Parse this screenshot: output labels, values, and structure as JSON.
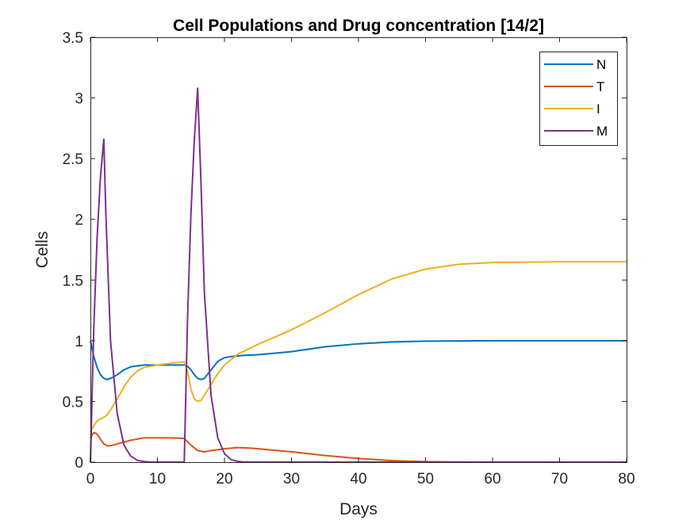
{
  "chart_data": {
    "type": "line",
    "title": "Cell Populations and Drug concentration [14/2]",
    "xlabel": "Days",
    "ylabel": "Cells",
    "xlim": [
      0,
      80
    ],
    "ylim": [
      0,
      3.5
    ],
    "xticks": [
      0,
      10,
      20,
      30,
      40,
      50,
      60,
      70,
      80
    ],
    "xtick_labels": [
      "0",
      "10",
      "20",
      "30",
      "40",
      "50",
      "60",
      "70",
      "80"
    ],
    "yticks": [
      0,
      0.5,
      1,
      1.5,
      2,
      2.5,
      3,
      3.5
    ],
    "ytick_labels": [
      "0",
      "0.5",
      "1",
      "1.5",
      "2",
      "2.5",
      "3",
      "3.5"
    ],
    "grid": false,
    "legend_position": "top-right",
    "series": [
      {
        "name": "N",
        "color": "#0072bd",
        "points": [
          [
            0,
            1
          ],
          [
            0.5,
            0.87
          ],
          [
            1,
            0.78
          ],
          [
            1.5,
            0.72
          ],
          [
            2,
            0.69
          ],
          [
            2.5,
            0.68
          ],
          [
            3,
            0.69
          ],
          [
            4,
            0.72
          ],
          [
            5,
            0.76
          ],
          [
            6,
            0.785
          ],
          [
            8,
            0.8
          ],
          [
            10,
            0.8
          ],
          [
            12,
            0.8
          ],
          [
            14,
            0.8
          ],
          [
            14.5,
            0.79
          ],
          [
            15,
            0.76
          ],
          [
            15.5,
            0.72
          ],
          [
            16,
            0.69
          ],
          [
            16.5,
            0.68
          ],
          [
            17,
            0.69
          ],
          [
            18,
            0.76
          ],
          [
            19,
            0.83
          ],
          [
            20,
            0.86
          ],
          [
            21,
            0.87
          ],
          [
            23,
            0.88
          ],
          [
            25,
            0.885
          ],
          [
            30,
            0.91
          ],
          [
            35,
            0.95
          ],
          [
            40,
            0.975
          ],
          [
            45,
            0.99
          ],
          [
            50,
            0.997
          ],
          [
            60,
            1
          ],
          [
            80,
            1
          ]
        ]
      },
      {
        "name": "T",
        "color": "#d95319",
        "points": [
          [
            0,
            0.2
          ],
          [
            0.5,
            0.245
          ],
          [
            1,
            0.23
          ],
          [
            1.5,
            0.19
          ],
          [
            2,
            0.15
          ],
          [
            2.5,
            0.135
          ],
          [
            3,
            0.135
          ],
          [
            4,
            0.15
          ],
          [
            6,
            0.18
          ],
          [
            8,
            0.2
          ],
          [
            10,
            0.2
          ],
          [
            12,
            0.2
          ],
          [
            14,
            0.195
          ],
          [
            15,
            0.14
          ],
          [
            16,
            0.095
          ],
          [
            17,
            0.085
          ],
          [
            18,
            0.095
          ],
          [
            20,
            0.11
          ],
          [
            22,
            0.12
          ],
          [
            24,
            0.115
          ],
          [
            26,
            0.105
          ],
          [
            30,
            0.085
          ],
          [
            35,
            0.055
          ],
          [
            40,
            0.03
          ],
          [
            45,
            0.012
          ],
          [
            50,
            0.004
          ],
          [
            55,
            0.001
          ],
          [
            60,
            0
          ],
          [
            80,
            0
          ]
        ]
      },
      {
        "name": "I",
        "color": "#edb120",
        "points": [
          [
            0,
            0.25
          ],
          [
            0.5,
            0.3
          ],
          [
            1,
            0.34
          ],
          [
            2,
            0.37
          ],
          [
            2.5,
            0.39
          ],
          [
            3,
            0.43
          ],
          [
            4,
            0.52
          ],
          [
            5,
            0.62
          ],
          [
            6,
            0.7
          ],
          [
            7,
            0.75
          ],
          [
            8,
            0.78
          ],
          [
            10,
            0.8
          ],
          [
            12,
            0.815
          ],
          [
            14,
            0.825
          ],
          [
            14.5,
            0.75
          ],
          [
            15,
            0.6
          ],
          [
            15.5,
            0.52
          ],
          [
            16,
            0.5
          ],
          [
            16.5,
            0.51
          ],
          [
            17,
            0.55
          ],
          [
            18,
            0.64
          ],
          [
            19,
            0.73
          ],
          [
            20,
            0.8
          ],
          [
            22,
            0.89
          ],
          [
            25,
            0.97
          ],
          [
            30,
            1.09
          ],
          [
            35,
            1.23
          ],
          [
            40,
            1.38
          ],
          [
            45,
            1.51
          ],
          [
            50,
            1.59
          ],
          [
            55,
            1.63
          ],
          [
            60,
            1.645
          ],
          [
            70,
            1.65
          ],
          [
            80,
            1.65
          ]
        ]
      },
      {
        "name": "M",
        "color": "#7e2f8e",
        "points": [
          [
            0,
            0
          ],
          [
            0.5,
            1.1
          ],
          [
            1,
            1.85
          ],
          [
            1.5,
            2.35
          ],
          [
            2,
            2.66
          ],
          [
            2.3,
            2.05
          ],
          [
            3,
            1.0
          ],
          [
            4,
            0.4
          ],
          [
            5,
            0.14
          ],
          [
            6,
            0.05
          ],
          [
            7,
            0.015
          ],
          [
            8,
            0.005
          ],
          [
            9,
            0
          ],
          [
            14,
            0
          ],
          [
            14.5,
            1.2
          ],
          [
            15,
            2.05
          ],
          [
            15.5,
            2.65
          ],
          [
            16,
            3.08
          ],
          [
            16.5,
            2.3
          ],
          [
            17,
            1.4
          ],
          [
            18,
            0.55
          ],
          [
            19,
            0.2
          ],
          [
            20,
            0.07
          ],
          [
            21,
            0.02
          ],
          [
            22,
            0.006
          ],
          [
            23,
            0
          ],
          [
            80,
            0
          ]
        ]
      }
    ]
  }
}
